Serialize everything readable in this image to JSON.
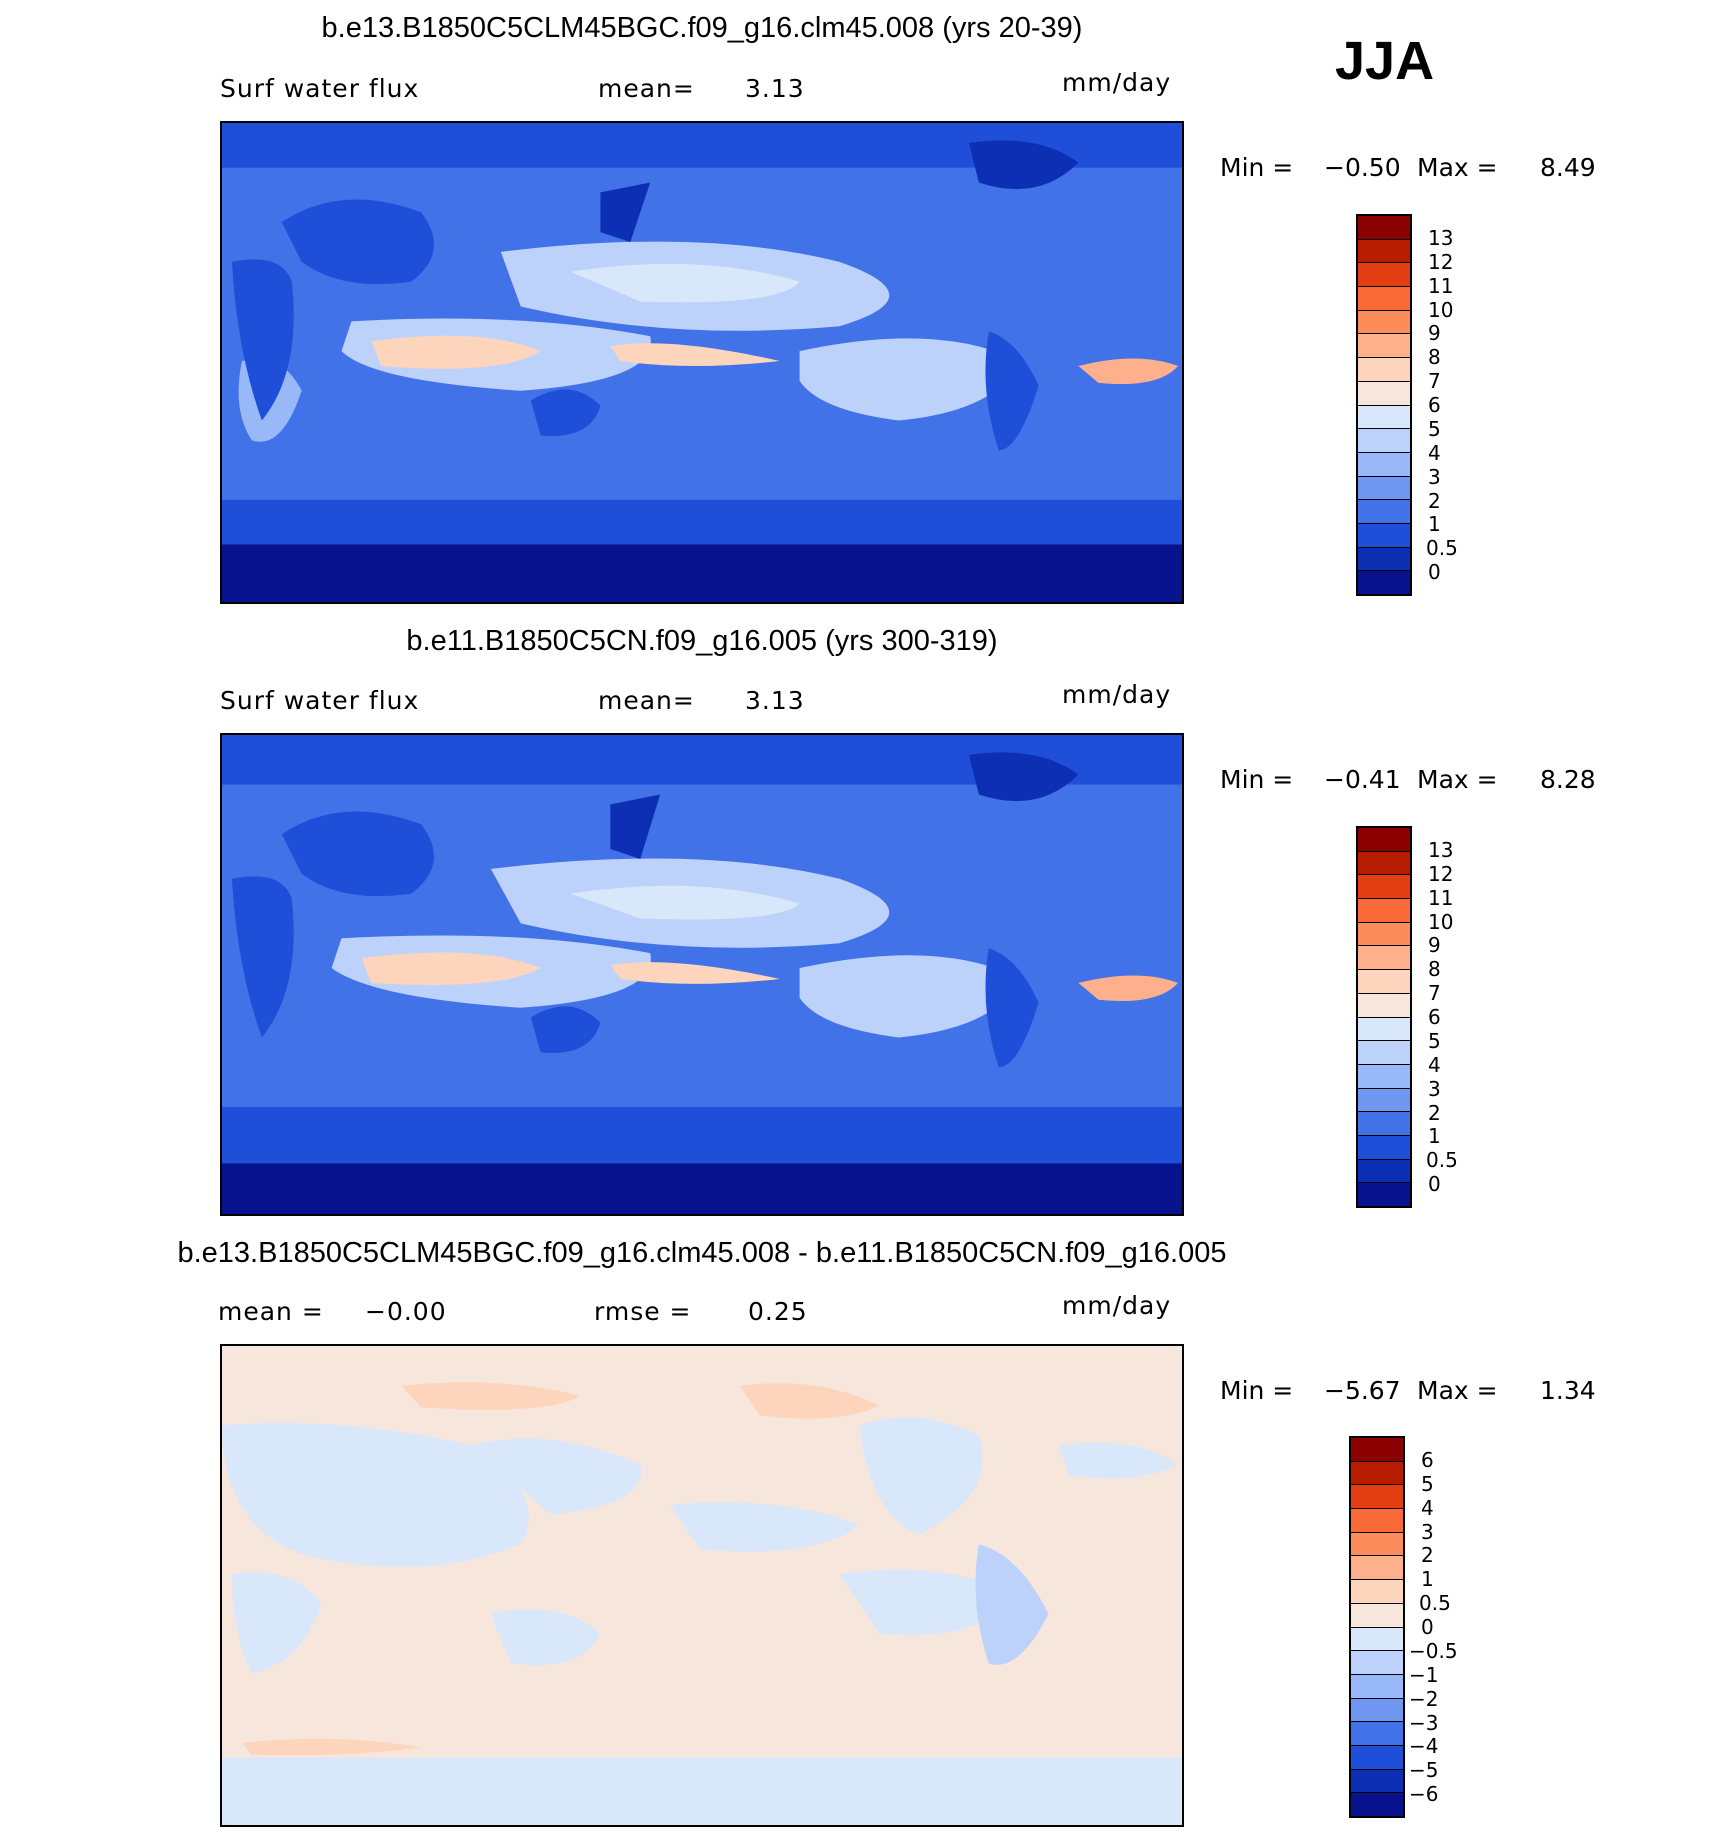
{
  "season": "JJA",
  "panels": [
    {
      "title": "b.e13.B1850C5CLM45BGC.f09_g16.clm45.008 (yrs 20-39)",
      "variable": "Surf water flux",
      "stat1_label": "mean=",
      "stat1_value": "3.13",
      "units": "mm/day",
      "min_label": "Min =",
      "min_value": "−0.50",
      "max_label": "Max =",
      "max_value": "8.49",
      "levels": [
        "13",
        "12",
        "11",
        "10",
        "9",
        "8",
        "7",
        "6",
        "5",
        "4",
        "3",
        "2",
        "1",
        "0.5",
        "0"
      ],
      "colors": [
        "#8b0000",
        "#b81c00",
        "#e33e12",
        "#fa6a38",
        "#fc8c5a",
        "#fdb08b",
        "#fdd5bc",
        "#f7e6dc",
        "#d9e7fb",
        "#bcd2fb",
        "#98b8f8",
        "#6f97f2",
        "#4272e8",
        "#1f4fd9",
        "#0d2fb3",
        "#06138c"
      ]
    },
    {
      "title": "b.e11.B1850C5CN.f09_g16.005 (yrs 300-319)",
      "variable": "Surf water flux",
      "stat1_label": "mean=",
      "stat1_value": "3.13",
      "units": "mm/day",
      "min_label": "Min =",
      "min_value": "−0.41",
      "max_label": "Max =",
      "max_value": "8.28",
      "levels": [
        "13",
        "12",
        "11",
        "10",
        "9",
        "8",
        "7",
        "6",
        "5",
        "4",
        "3",
        "2",
        "1",
        "0.5",
        "0"
      ],
      "colors": [
        "#8b0000",
        "#b81c00",
        "#e33e12",
        "#fa6a38",
        "#fc8c5a",
        "#fdb08b",
        "#fdd5bc",
        "#f7e6dc",
        "#d9e7fb",
        "#bcd2fb",
        "#98b8f8",
        "#6f97f2",
        "#4272e8",
        "#1f4fd9",
        "#0d2fb3",
        "#06138c"
      ]
    },
    {
      "title": "b.e13.B1850C5CLM45BGC.f09_g16.clm45.008 - b.e11.B1850C5CN.f09_g16.005",
      "stat1_label": "mean =",
      "stat1_value": "−0.00",
      "stat2_label": "rmse =",
      "stat2_value": "0.25",
      "units": "mm/day",
      "min_label": "Min =",
      "min_value": "−5.67",
      "max_label": "Max =",
      "max_value": "1.34",
      "levels": [
        "6",
        "5",
        "4",
        "3",
        "2",
        "1",
        "0.5",
        "0",
        "−0.5",
        "−1",
        "−2",
        "−3",
        "−4",
        "−5",
        "−6"
      ],
      "colors": [
        "#8b0000",
        "#b81c00",
        "#e33e12",
        "#fa6a38",
        "#fc8c5a",
        "#fdb08b",
        "#fdd5bc",
        "#f7e6dc",
        "#d9e7fb",
        "#bcd2fb",
        "#98b8f8",
        "#6f97f2",
        "#4272e8",
        "#1f4fd9",
        "#0d2fb3",
        "#06138c"
      ]
    }
  ]
}
